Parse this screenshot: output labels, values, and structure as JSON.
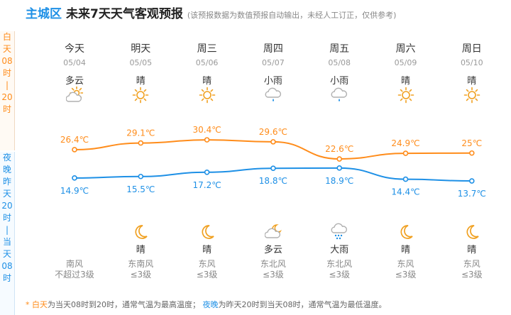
{
  "header": {
    "district": "主城区",
    "title": "未来7天天气客观预报",
    "note": "(该预报数据为数值预报自动输出，未经人工订正，仅供参考)"
  },
  "side": {
    "day_chars": [
      "白",
      "天",
      "08",
      "时",
      "|",
      "20",
      "时"
    ],
    "night_chars": [
      "夜",
      "晚",
      "昨",
      "天",
      "20",
      "时",
      "|",
      "当",
      "天",
      "08",
      "时"
    ]
  },
  "days": [
    {
      "name": "今天",
      "date": "05/04",
      "day_weather": "多云",
      "day_icon": "cloudy-sun-icon",
      "high_label": "26.4℃",
      "low_label": "14.9℃",
      "night_icon": "moon-icon",
      "night_weather": "",
      "wind_dir": "南风",
      "wind_level": "不超过3级"
    },
    {
      "name": "明天",
      "date": "05/05",
      "day_weather": "晴",
      "day_icon": "sun-icon",
      "high_label": "29.1℃",
      "low_label": "15.5℃",
      "night_icon": "moon-icon",
      "night_weather": "晴",
      "wind_dir": "东南风",
      "wind_level": "≤3级"
    },
    {
      "name": "周三",
      "date": "05/06",
      "day_weather": "晴",
      "day_icon": "sun-icon",
      "high_label": "30.4℃",
      "low_label": "17.2℃",
      "night_icon": "moon-icon",
      "night_weather": "晴",
      "wind_dir": "东风",
      "wind_level": "≤3级"
    },
    {
      "name": "周四",
      "date": "05/07",
      "day_weather": "小雨",
      "day_icon": "light-rain-icon",
      "high_label": "29.6℃",
      "low_label": "18.8℃",
      "night_icon": "cloudy-moon-icon",
      "night_weather": "多云",
      "wind_dir": "东北风",
      "wind_level": "≤3级"
    },
    {
      "name": "周五",
      "date": "05/08",
      "day_weather": "小雨",
      "day_icon": "light-rain-icon",
      "high_label": "22.6℃",
      "low_label": "18.9℃",
      "night_icon": "heavy-rain-icon",
      "night_weather": "大雨",
      "wind_dir": "东北风",
      "wind_level": "≤3级"
    },
    {
      "name": "周六",
      "date": "05/09",
      "day_weather": "晴",
      "day_icon": "sun-icon",
      "high_label": "24.9℃",
      "low_label": "14.4℃",
      "night_icon": "moon-icon",
      "night_weather": "晴",
      "wind_dir": "东风",
      "wind_level": "≤3级"
    },
    {
      "name": "周日",
      "date": "05/10",
      "day_weather": "晴",
      "day_icon": "sun-icon",
      "high_label": "25℃",
      "low_label": "13.7℃",
      "night_icon": "moon-icon",
      "night_weather": "晴",
      "wind_dir": "东风",
      "wind_level": "≤3级"
    }
  ],
  "chart_data": {
    "type": "line",
    "categories": [
      "05/04",
      "05/05",
      "05/06",
      "05/07",
      "05/08",
      "05/09",
      "05/10"
    ],
    "series": [
      {
        "values": [
          26.4,
          29.1,
          30.4,
          29.6,
          22.6,
          24.9,
          25
        ],
        "color": "#ff8c1a"
      },
      {
        "values": [
          14.9,
          15.5,
          17.2,
          18.8,
          18.9,
          14.4,
          13.7
        ],
        "color": "#1e90e6"
      }
    ]
  },
  "footer": {
    "star": "*",
    "day_label": "白天",
    "day_text": "为当天08时到20时，通常气温为最高温度；",
    "night_label": "夜晚",
    "night_text": "为昨天20时到当天08时，通常气温为最低温度。"
  }
}
